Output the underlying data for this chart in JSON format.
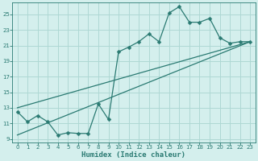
{
  "xlabel": "Humidex (Indice chaleur)",
  "background_color": "#d4efed",
  "grid_color": "#aed8d4",
  "line_color": "#2a7a72",
  "xlim": [
    -0.5,
    23.5
  ],
  "ylim": [
    8.5,
    26.5
  ],
  "xticks": [
    0,
    1,
    2,
    3,
    4,
    5,
    6,
    7,
    8,
    9,
    10,
    11,
    12,
    13,
    14,
    15,
    16,
    17,
    18,
    19,
    20,
    21,
    22,
    23
  ],
  "yticks": [
    9,
    11,
    13,
    15,
    17,
    19,
    21,
    23,
    25
  ],
  "line1_x": [
    0,
    1,
    2,
    3,
    4,
    5,
    6,
    7,
    8,
    9,
    10,
    11,
    12,
    13,
    14,
    15,
    16,
    17,
    18,
    19,
    20,
    21,
    22,
    23
  ],
  "line1_y": [
    12.5,
    11.2,
    12.0,
    11.2,
    9.5,
    9.8,
    9.7,
    9.7,
    13.5,
    11.5,
    20.2,
    20.8,
    21.5,
    22.5,
    21.5,
    25.2,
    26.0,
    24.0,
    24.0,
    24.5,
    22.0,
    21.3,
    21.5,
    21.5
  ],
  "line2_x": [
    0,
    23
  ],
  "line2_y": [
    13.0,
    21.5
  ],
  "line3_x": [
    0,
    23
  ],
  "line3_y": [
    9.5,
    21.5
  ]
}
